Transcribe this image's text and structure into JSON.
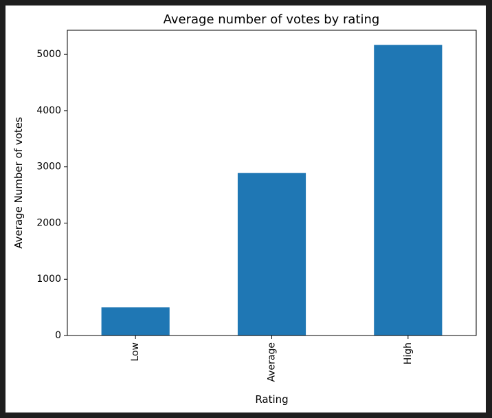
{
  "chart_data": {
    "type": "bar",
    "title": "Average number of votes by rating",
    "xlabel": "Rating",
    "ylabel": "Average Number of votes",
    "categories": [
      "Low",
      "Average",
      "High"
    ],
    "values": [
      500,
      2890,
      5170
    ],
    "ylim": [
      0,
      5430
    ],
    "yticks": [
      0,
      1000,
      2000,
      3000,
      4000,
      5000
    ],
    "bar_color": "#1f77b4",
    "grid": false,
    "legend": "none"
  }
}
